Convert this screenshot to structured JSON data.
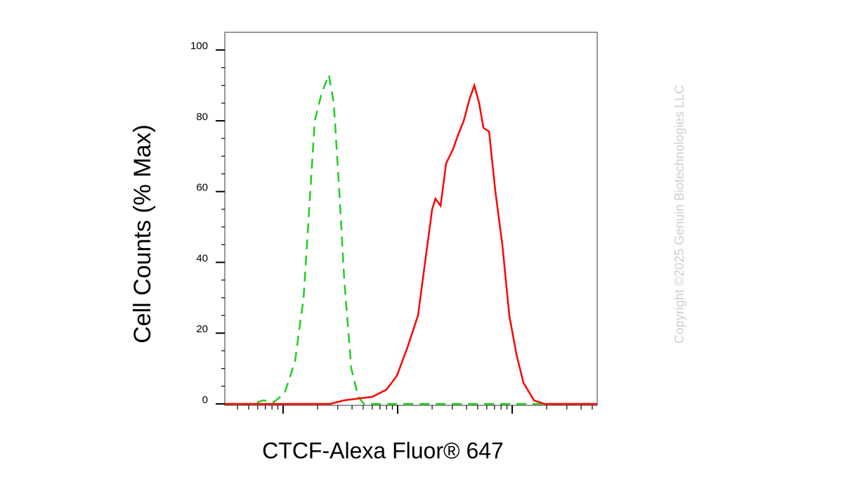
{
  "chart_data": {
    "type": "line",
    "xlabel": "CTCF-Alexa Fluor® 647",
    "ylabel": "Cell Counts (% Max)",
    "watermark": "Copyright ©2025 Genuin Biotechnologies LLC",
    "xscale": "log",
    "xlim": [
      3.1,
      5520
    ],
    "xticks": [
      10,
      100,
      1000
    ],
    "xminorticks": [
      4,
      5,
      6,
      7,
      8,
      9,
      20,
      30,
      40,
      50,
      60,
      70,
      80,
      90,
      200,
      300,
      400,
      500,
      600,
      700,
      800,
      900,
      2000,
      3000,
      4000,
      5000
    ],
    "ylim": [
      -0.4,
      105
    ],
    "yticks": [
      0,
      20,
      40,
      60,
      80,
      100
    ],
    "yminorticks": [
      5,
      10,
      15,
      25,
      30,
      35,
      45,
      50,
      55,
      65,
      70,
      75,
      85,
      90,
      95
    ],
    "series": [
      {
        "color": "#22cc22",
        "dashed": true,
        "x": [
          3.1,
          5.4,
          6.7,
          8.3,
          10.3,
          12.7,
          15.1,
          16.9,
          18.9,
          21.8,
          25.1,
          27.7,
          31.0,
          34.2,
          39.4,
          45.3,
          50.8,
          91.9,
          5520
        ],
        "values": [
          0,
          0,
          1,
          0.5,
          3,
          12,
          30,
          55,
          80,
          88,
          93,
          85,
          60,
          35,
          10,
          2,
          0,
          0,
          0
        ]
      },
      {
        "color": "#ff0000",
        "dashed": false,
        "x": [
          3.1,
          25.8,
          34.2,
          45.3,
          60.1,
          79.8,
          98.6,
          121.9,
          150.7,
          173.5,
          200,
          214,
          237,
          265,
          305,
          337,
          378,
          423,
          467,
          515,
          561,
          628,
          713,
          820,
          944,
          1089,
          1253,
          1549,
          1914,
          5520
        ],
        "values": [
          0,
          0,
          1,
          1.5,
          2,
          4,
          8,
          16,
          25,
          40,
          55,
          58,
          56,
          68,
          72,
          76,
          80,
          86,
          90,
          85,
          78,
          77,
          60,
          45,
          25,
          14,
          6,
          1,
          0,
          0
        ]
      }
    ]
  }
}
